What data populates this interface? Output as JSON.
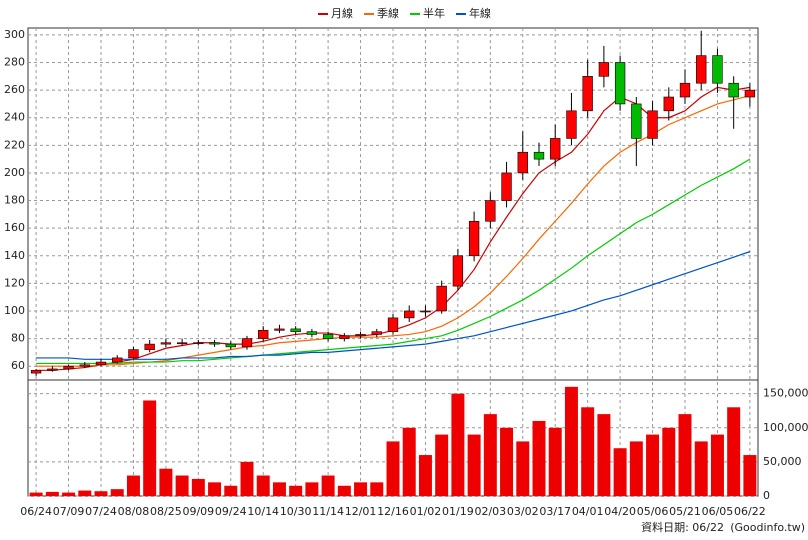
{
  "chart_data": {
    "type": "candlestick",
    "categories": [
      "06/24",
      null,
      "07/09",
      null,
      "07/24",
      null,
      "08/08",
      null,
      "08/25",
      null,
      "09/09",
      null,
      "09/24",
      null,
      "10/14",
      null,
      "10/30",
      null,
      "11/14",
      null,
      "12/01",
      null,
      "12/16",
      null,
      "01/02",
      null,
      "01/19",
      null,
      "02/03",
      null,
      "03/02",
      null,
      "03/17",
      null,
      "04/01",
      null,
      "04/20",
      null,
      "05/06",
      null,
      "05/21",
      null,
      "06/05",
      null,
      "06/22"
    ],
    "open": [
      55,
      57,
      58,
      60,
      61,
      63,
      66,
      72,
      76,
      77,
      77,
      77,
      76,
      74,
      80,
      86,
      87,
      85,
      83,
      80,
      82,
      83,
      85,
      95,
      100,
      100,
      118,
      140,
      165,
      180,
      200,
      215,
      210,
      225,
      245,
      270,
      280,
      250,
      225,
      245,
      255,
      265,
      285,
      265,
      255
    ],
    "high": [
      58,
      60,
      61,
      63,
      65,
      68,
      74,
      79,
      80,
      80,
      79,
      79,
      78,
      82,
      89,
      90,
      89,
      87,
      85,
      84,
      85,
      87,
      98,
      104,
      104,
      122,
      145,
      172,
      186,
      208,
      230,
      222,
      235,
      258,
      282,
      292,
      285,
      255,
      252,
      262,
      275,
      303,
      290,
      270,
      265
    ],
    "low": [
      53,
      56,
      57,
      59,
      60,
      62,
      65,
      70,
      74,
      75,
      75,
      74,
      72,
      72,
      78,
      84,
      83,
      81,
      78,
      78,
      80,
      81,
      83,
      92,
      96,
      98,
      115,
      136,
      160,
      175,
      195,
      205,
      205,
      220,
      240,
      262,
      245,
      205,
      220,
      238,
      250,
      260,
      258,
      232,
      248
    ],
    "close": [
      57,
      58,
      60,
      61,
      63,
      66,
      72,
      76,
      77,
      77,
      77,
      76,
      74,
      80,
      86,
      87,
      85,
      83,
      80,
      82,
      83,
      85,
      95,
      100,
      100,
      118,
      140,
      165,
      180,
      200,
      215,
      210,
      225,
      245,
      270,
      280,
      250,
      225,
      245,
      255,
      265,
      285,
      265,
      255,
      260
    ],
    "up_color": "#ff0000",
    "down_color": "#00bb00",
    "ylim": [
      50,
      305
    ],
    "yticks": [
      60,
      80,
      100,
      120,
      140,
      160,
      180,
      200,
      220,
      240,
      260,
      280,
      300
    ],
    "series": [
      {
        "name": "月線",
        "color": "#cc0000",
        "values": [
          57,
          57,
          58,
          59,
          61,
          63,
          65,
          69,
          73,
          75,
          77,
          77,
          76,
          76,
          78,
          81,
          83,
          84,
          84,
          82,
          82,
          83,
          86,
          90,
          95,
          103,
          115,
          130,
          150,
          168,
          185,
          200,
          208,
          215,
          228,
          245,
          255,
          250,
          240,
          240,
          245,
          255,
          262,
          260,
          262
        ]
      },
      {
        "name": "季線",
        "color": "#ff6600",
        "values": [
          60,
          60,
          60,
          60,
          61,
          61,
          62,
          63,
          64,
          66,
          68,
          70,
          72,
          74,
          75,
          77,
          78,
          79,
          80,
          81,
          81,
          81,
          82,
          83,
          85,
          89,
          95,
          103,
          113,
          125,
          138,
          152,
          165,
          178,
          192,
          205,
          215,
          222,
          228,
          235,
          240,
          245,
          250,
          253,
          256
        ]
      },
      {
        "name": "半年",
        "color": "#00cc00",
        "values": [
          62,
          62,
          62,
          62,
          62,
          62,
          63,
          63,
          63,
          64,
          64,
          65,
          66,
          67,
          68,
          69,
          70,
          71,
          72,
          73,
          74,
          75,
          76,
          78,
          80,
          82,
          86,
          91,
          96,
          102,
          108,
          115,
          123,
          131,
          140,
          148,
          156,
          164,
          170,
          177,
          184,
          191,
          197,
          203,
          210
        ]
      },
      {
        "name": "年線",
        "color": "#0050cc",
        "values": [
          66,
          66,
          66,
          65,
          65,
          65,
          65,
          65,
          65,
          66,
          66,
          66,
          67,
          67,
          68,
          68,
          69,
          70,
          70,
          71,
          72,
          73,
          74,
          75,
          76,
          78,
          80,
          82,
          85,
          88,
          91,
          94,
          97,
          100,
          104,
          108,
          111,
          115,
          119,
          123,
          127,
          131,
          135,
          139,
          143
        ]
      }
    ],
    "volume": {
      "color": "#ee0000",
      "axis": "y2",
      "values": [
        5000,
        6000,
        5000,
        8000,
        7000,
        10000,
        30000,
        140000,
        40000,
        30000,
        25000,
        20000,
        15000,
        50000,
        30000,
        20000,
        15000,
        20000,
        30000,
        15000,
        20000,
        20000,
        80000,
        100000,
        60000,
        90000,
        150000,
        90000,
        120000,
        100000,
        80000,
        110000,
        100000,
        160000,
        130000,
        120000,
        70000,
        80000,
        90000,
        100000,
        120000,
        80000,
        90000,
        130000,
        60000
      ]
    },
    "y2lim": [
      0,
      170000
    ],
    "y2ticks": [
      0,
      {
        "value": 50000,
        "label": "50,000"
      },
      {
        "value": 100000,
        "label": "100,000"
      },
      {
        "value": 150000,
        "label": "150,000"
      }
    ],
    "grid": true,
    "footer": {
      "date_label": "資料日期: 06/22",
      "source": "(Goodinfo.tw)"
    }
  }
}
